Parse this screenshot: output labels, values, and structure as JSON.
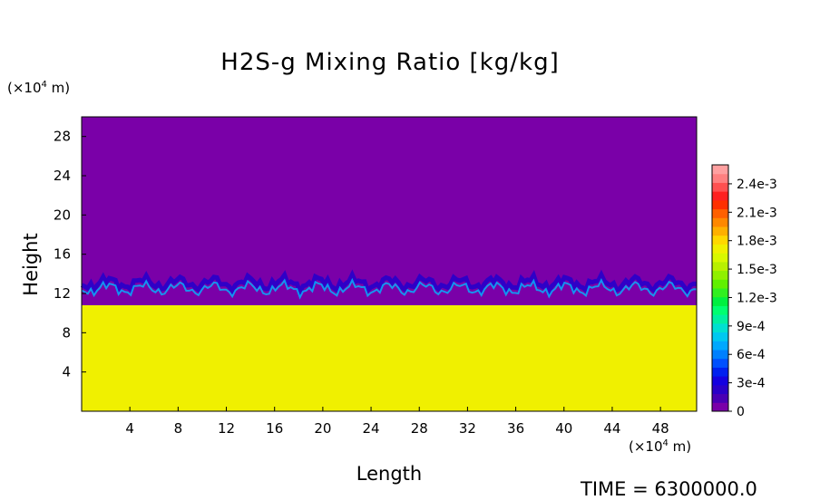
{
  "chart_data": {
    "type": "heatmap",
    "title": "H2S-g Mixing Ratio [kg/kg]",
    "xlabel": "Length",
    "ylabel": "Height",
    "x_unit": "(×10",
    "x_unit_exp": "4",
    "x_unit_tail": " m)",
    "y_unit": "(×10",
    "y_unit_exp": "4",
    "y_unit_tail": " m)",
    "xlim": [
      0,
      51
    ],
    "ylim": [
      0,
      30
    ],
    "x_ticks": [
      4,
      8,
      12,
      16,
      20,
      24,
      28,
      32,
      36,
      40,
      44,
      48
    ],
    "x_tick_labels": [
      "4",
      "8",
      "12",
      "16",
      "20",
      "24",
      "28",
      "32",
      "36",
      "40",
      "44",
      "48"
    ],
    "y_ticks": [
      4,
      8,
      12,
      16,
      20,
      24,
      28
    ],
    "y_tick_labels": [
      "4",
      "8",
      "12",
      "16",
      "20",
      "24",
      "28"
    ],
    "regions": {
      "upper_value": 0,
      "lower_value": 0.00175,
      "interface_height": 12.5,
      "transition_band": [
        10.8,
        13.5
      ]
    },
    "colorbar": {
      "range": [
        0,
        0.0026
      ],
      "tick_values": [
        0,
        0.0003,
        0.0006,
        0.0009,
        0.0012,
        0.0015,
        0.0018,
        0.0021,
        0.0024
      ],
      "tick_labels": [
        "0",
        "3e-4",
        "6e-4",
        "9e-4",
        "1.2e-3",
        "1.5e-3",
        "1.8e-3",
        "2.1e-3",
        "2.4e-3"
      ],
      "colors": [
        "#7a00a8",
        "#4a00b4",
        "#2a00c8",
        "#1400e0",
        "#0020f0",
        "#0050ff",
        "#0080ff",
        "#00a8ff",
        "#00c8f0",
        "#00e0d0",
        "#00f0a0",
        "#00ff70",
        "#00f040",
        "#30f020",
        "#60f000",
        "#90f000",
        "#b8f000",
        "#d8f800",
        "#f0f000",
        "#ffd800",
        "#ffb000",
        "#ff8800",
        "#ff6000",
        "#ff3000",
        "#ff2020",
        "#ff5050",
        "#ff8080",
        "#ffa0a0"
      ]
    },
    "time_label": "TIME = 6300000.0"
  }
}
